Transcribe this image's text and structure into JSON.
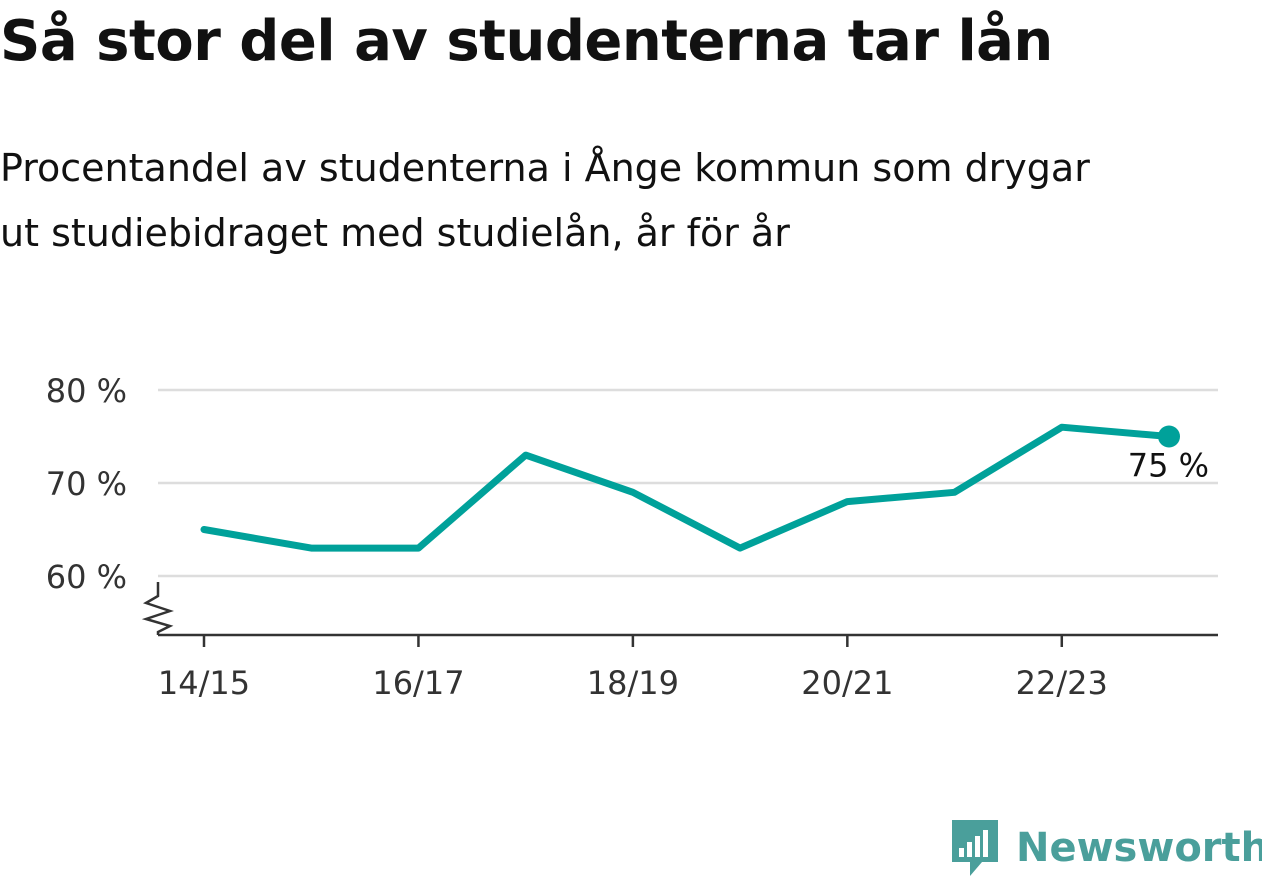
{
  "header": {
    "title": "Så stor del av studenterna tar lån",
    "subtitle_line1": "Procentandel av studenterna i Ånge kommun som drygar",
    "subtitle_line2": "ut studiebidraget med studielån, år för år"
  },
  "chart_data": {
    "type": "line",
    "x": [
      "14/15",
      "15/16",
      "16/17",
      "17/18",
      "18/19",
      "19/20",
      "20/21",
      "21/22",
      "22/23",
      "23/24"
    ],
    "x_tick_labels": [
      "14/15",
      "16/17",
      "18/19",
      "20/21",
      "22/23"
    ],
    "series": [
      {
        "values": [
          65,
          63,
          63,
          73,
          69,
          63,
          68,
          69,
          76,
          75
        ],
        "color": "#00a19a"
      }
    ],
    "y_ticks": [
      60,
      70,
      80
    ],
    "y_tick_labels": [
      "60 %",
      "70 %",
      "80 %"
    ],
    "ylim": [
      53.5,
      80
    ],
    "y_axis_broken": true,
    "grid": true,
    "last_value_label": "75 %"
  },
  "brand": {
    "name": "Newsworthy",
    "icon": "newsworthy-logo-icon",
    "color": "#4a9f9b"
  }
}
